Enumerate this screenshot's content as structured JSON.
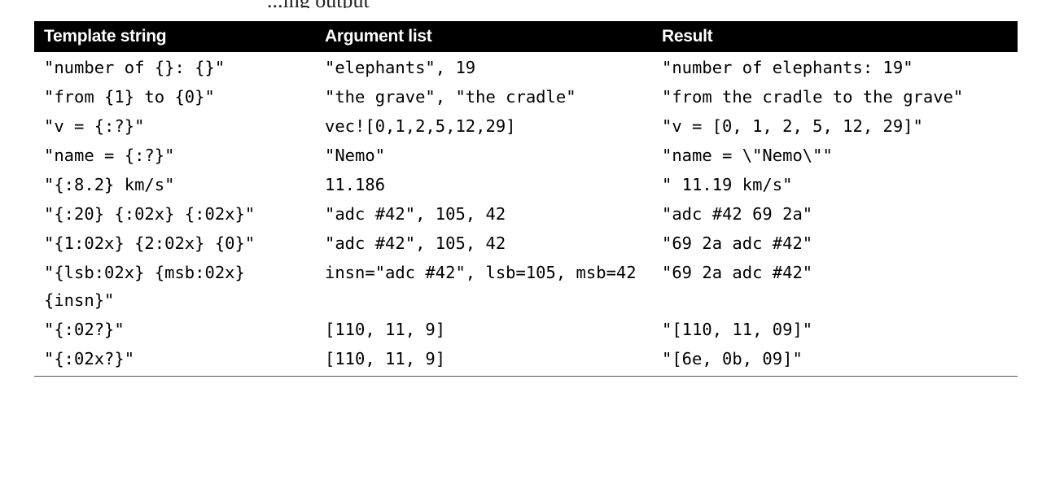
{
  "caption": "...ing output",
  "table": {
    "headers": [
      "Template string",
      "Argument list",
      "Result"
    ],
    "rows": [
      [
        "\"number of {}: {}\"",
        "\"elephants\", 19",
        "\"number of elephants: 19\""
      ],
      [
        "\"from {1} to {0}\"",
        "\"the grave\", \"the cradle\"",
        "\"from the cradle to the grave\""
      ],
      [
        "\"v = {:?}\"",
        "vec![0,1,2,5,12,29]",
        "\"v = [0, 1, 2, 5, 12, 29]\""
      ],
      [
        "\"name = {:?}\"",
        "\"Nemo\"",
        "\"name = \\\"Nemo\\\"\""
      ],
      [
        "\"{:8.2} km/s\"",
        "11.186",
        "\" 11.19 km/s\""
      ],
      [
        "\"{:20} {:02x} {:02x}\"",
        "\"adc #42\", 105, 42",
        "\"adc #42 69 2a\""
      ],
      [
        "\"{1:02x} {2:02x} {0}\"",
        "\"adc #42\", 105, 42",
        "\"69 2a adc #42\""
      ],
      [
        "\"{lsb:02x} {msb:02x} {insn}\"",
        "insn=\"adc #42\", lsb=105, msb=42",
        "\"69 2a adc #42\""
      ],
      [
        "\"{:02?}\"",
        "[110, 11, 9]",
        "\"[110, 11, 09]\""
      ],
      [
        "\"{:02x?}\"",
        "[110, 11, 9]",
        "\"[6e, 0b, 09]\""
      ]
    ]
  }
}
